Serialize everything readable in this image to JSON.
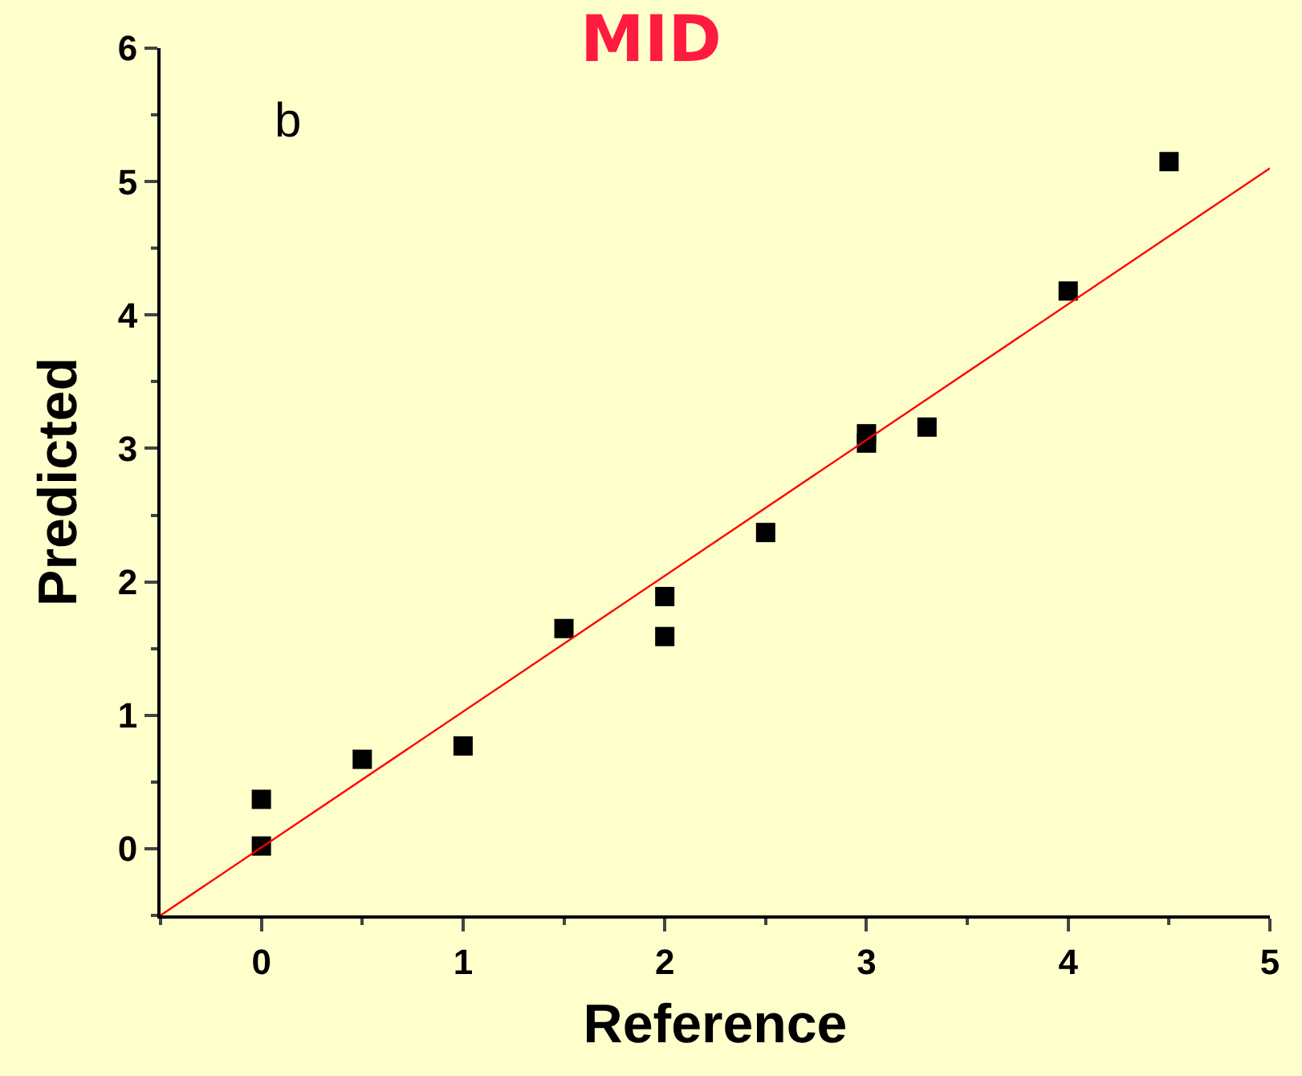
{
  "chart_data": {
    "type": "scatter",
    "title": "MID",
    "xlabel": "Reference",
    "ylabel": "Predicted",
    "annotations": [
      "b"
    ],
    "xlim": [
      -0.5,
      5
    ],
    "ylim": [
      -0.5,
      6
    ],
    "xticks": [
      0,
      1,
      2,
      3,
      4,
      5
    ],
    "yticks": [
      0,
      1,
      2,
      3,
      4,
      5,
      6
    ],
    "grid": false,
    "marker": "square",
    "series": [
      {
        "color": "#000000",
        "x": [
          0,
          0,
          0.5,
          1,
          1.5,
          2,
          2,
          2.5,
          3,
          3,
          3.3,
          4,
          4.5
        ],
        "values": [
          0.37,
          0.02,
          0.67,
          0.77,
          1.65,
          1.89,
          1.59,
          2.37,
          3.11,
          3.04,
          3.16,
          4.18,
          5.15
        ]
      },
      {
        "type": "line",
        "color": "#ff0000",
        "marker": "none",
        "x": [
          -0.5,
          5
        ],
        "values": [
          -0.5,
          5.1
        ]
      }
    ]
  }
}
